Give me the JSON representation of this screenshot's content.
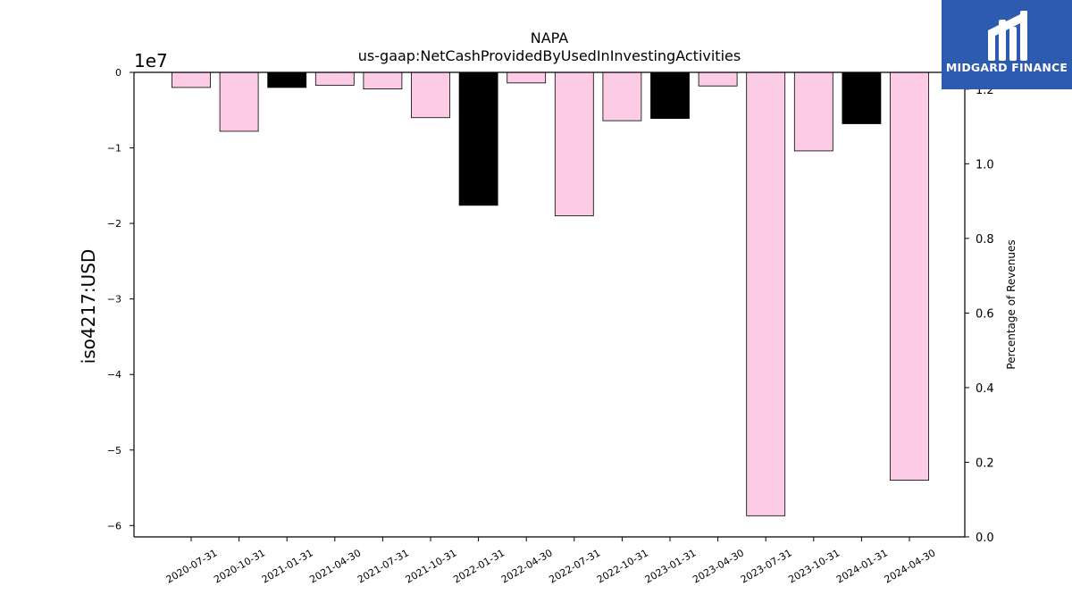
{
  "chart_data": {
    "type": "bar",
    "title": "NAPA",
    "subtitle": "us-gaap:NetCashProvidedByUsedInInvestingActivities",
    "ylabel": "iso4217:USD",
    "y2label": "Percentage of Revenues",
    "exponent_label": "1e7",
    "categories": [
      "2020-07-31",
      "2020-10-31",
      "2021-01-31",
      "2021-04-30",
      "2021-07-31",
      "2021-10-31",
      "2022-01-31",
      "2022-04-30",
      "2022-07-31",
      "2022-10-31",
      "2023-01-31",
      "2023-04-30",
      "2023-07-31",
      "2023-10-31",
      "2024-01-31",
      "2024-04-30"
    ],
    "values": [
      -2000000,
      -7800000,
      -2000000,
      -1700000,
      -2200000,
      -6000000,
      -17600000,
      -1400000,
      -19000000,
      -6400000,
      -6100000,
      -1800000,
      -58700000,
      -10400000,
      -6800000,
      -54000000
    ],
    "bar_colors": [
      "#fccbe6",
      "#fccbe6",
      "#000000",
      "#fccbe6",
      "#fccbe6",
      "#fccbe6",
      "#000000",
      "#fccbe6",
      "#fccbe6",
      "#fccbe6",
      "#000000",
      "#fccbe6",
      "#fccbe6",
      "#fccbe6",
      "#000000",
      "#fccbe6"
    ],
    "ylim": [
      -61500000,
      0
    ],
    "yticks": [
      0,
      -10000000,
      -20000000,
      -30000000,
      -40000000,
      -50000000,
      -60000000
    ],
    "ytick_labels": [
      "0",
      "−1",
      "−2",
      "−3",
      "−4",
      "−5",
      "−6"
    ],
    "y2lim": [
      0,
      1.245
    ],
    "y2ticks": [
      0.0,
      0.2,
      0.4,
      0.6,
      0.8,
      1.0,
      1.2
    ],
    "y2tick_labels": [
      "0.0",
      "0.2",
      "0.4",
      "0.6",
      "0.8",
      "1.0",
      "1.2"
    ],
    "grid": false,
    "legend": "none"
  },
  "brand": {
    "name": "MIDGARD FINANCE",
    "color": "#2c5bb0"
  }
}
